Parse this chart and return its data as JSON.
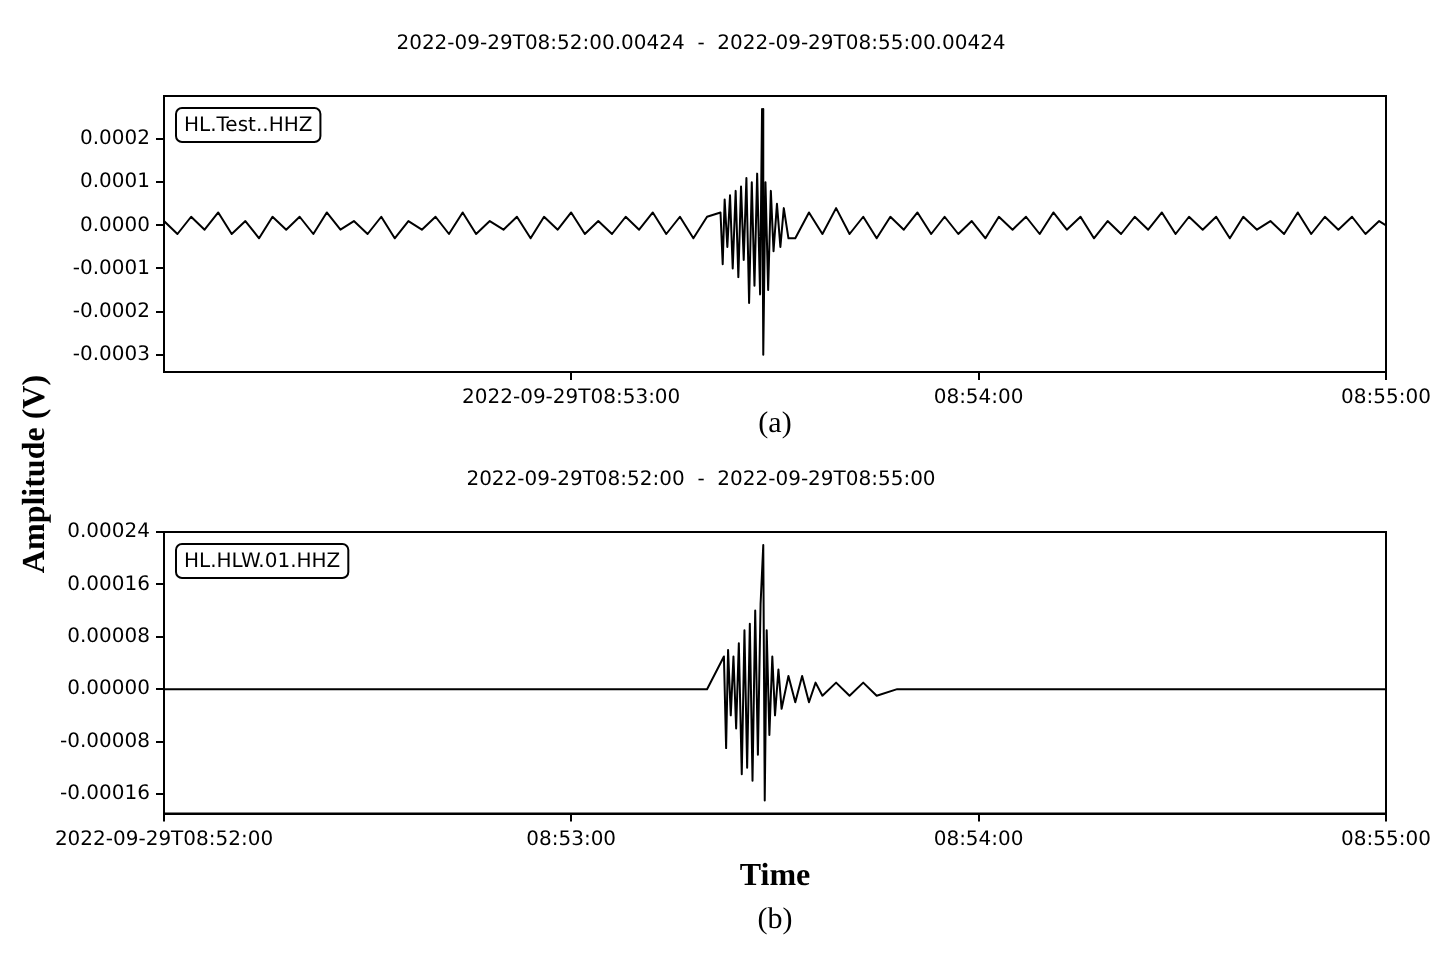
{
  "chart_data": [
    {
      "type": "line",
      "title": "2022-09-29T08:52:00.00424  -  2022-09-29T08:55:00.00424",
      "ylabel": "Amplitude (V)",
      "annotations": [
        "(a)"
      ],
      "legend": "top left",
      "grid": false,
      "marker": "none",
      "line_style": "solid",
      "xlim": [
        8.86667,
        8.91667
      ],
      "xticks": [
        {
          "value": 8.88333,
          "label": "2022-09-29T08:53:00"
        },
        {
          "value": 8.9,
          "label": "08:54:00"
        },
        {
          "value": 8.91667,
          "label": "08:55:00"
        }
      ],
      "ylim": [
        -0.00034,
        0.0003
      ],
      "yticks": [
        -0.0003,
        -0.0002,
        -0.0001,
        {
          "value": 0,
          "label": "0.0000"
        },
        0.0001,
        0.0002
      ],
      "series": [
        {
          "name": "HL.Test..HHZ",
          "color": "#000000",
          "x": [
            8.86667,
            8.86722,
            8.86778,
            8.86833,
            8.86889,
            8.86944,
            8.87,
            8.87056,
            8.87111,
            8.87167,
            8.87222,
            8.87278,
            8.87333,
            8.87389,
            8.87444,
            8.875,
            8.87556,
            8.87611,
            8.87667,
            8.87722,
            8.87778,
            8.87833,
            8.87889,
            8.87944,
            8.88,
            8.88056,
            8.88111,
            8.88167,
            8.88222,
            8.88278,
            8.88333,
            8.88389,
            8.88444,
            8.885,
            8.88556,
            8.88611,
            8.88667,
            8.88722,
            8.88778,
            8.88833,
            8.88889,
            8.88944,
            8.88953,
            8.88961,
            8.88972,
            8.88983,
            8.88994,
            8.89006,
            8.89017,
            8.89028,
            8.89039,
            8.8905,
            8.89061,
            8.89072,
            8.89083,
            8.89094,
            8.89106,
            8.89114,
            8.89119,
            8.89128,
            8.89139,
            8.8915,
            8.89161,
            8.89175,
            8.89189,
            8.89203,
            8.89222,
            8.8925,
            8.89306,
            8.89361,
            8.89417,
            8.89472,
            8.89528,
            8.89583,
            8.89639,
            8.89694,
            8.8975,
            8.89806,
            8.89861,
            8.89917,
            8.89972,
            8.90028,
            8.90083,
            8.90139,
            8.90194,
            8.9025,
            8.90306,
            8.90361,
            8.90417,
            8.90472,
            8.90528,
            8.90583,
            8.90639,
            8.90694,
            8.9075,
            8.90806,
            8.90861,
            8.90917,
            8.90972,
            8.91028,
            8.91083,
            8.91139,
            8.91194,
            8.9125,
            8.91306,
            8.91361,
            8.91417,
            8.91472,
            8.91528,
            8.91583,
            8.91639,
            8.91667
          ],
          "values": [
            1e-05,
            -2e-05,
            2e-05,
            -1e-05,
            3e-05,
            -2e-05,
            1e-05,
            -3e-05,
            2e-05,
            -1e-05,
            2e-05,
            -2e-05,
            3e-05,
            -1e-05,
            1e-05,
            -2e-05,
            2e-05,
            -3e-05,
            1e-05,
            -1e-05,
            2e-05,
            -2e-05,
            3e-05,
            -2e-05,
            1e-05,
            -1e-05,
            2e-05,
            -3e-05,
            2e-05,
            -1e-05,
            3e-05,
            -2e-05,
            1e-05,
            -2e-05,
            2e-05,
            -1e-05,
            3e-05,
            -2e-05,
            2e-05,
            -3e-05,
            2e-05,
            3e-05,
            -9e-05,
            6e-05,
            -5e-05,
            7e-05,
            -0.0001,
            8e-05,
            -0.00012,
            9e-05,
            -8e-05,
            0.00011,
            -0.00018,
            0.0001,
            -0.00014,
            0.00012,
            -0.00016,
            0.00027,
            -0.0003,
            0.0001,
            -0.00015,
            8e-05,
            -6e-05,
            5e-05,
            -5e-05,
            4e-05,
            -3e-05,
            -3e-05,
            3e-05,
            -2e-05,
            4e-05,
            -2e-05,
            2e-05,
            -3e-05,
            2e-05,
            -1e-05,
            3e-05,
            -2e-05,
            2e-05,
            -2e-05,
            1e-05,
            -3e-05,
            2e-05,
            -1e-05,
            2e-05,
            -2e-05,
            3e-05,
            -1e-05,
            2e-05,
            -3e-05,
            1e-05,
            -2e-05,
            2e-05,
            -1e-05,
            3e-05,
            -2e-05,
            2e-05,
            -1e-05,
            2e-05,
            -3e-05,
            2e-05,
            -1e-05,
            1e-05,
            -2e-05,
            3e-05,
            -2e-05,
            2e-05,
            -1e-05,
            2e-05,
            -2e-05,
            1e-05,
            0
          ]
        }
      ]
    },
    {
      "type": "line",
      "title": "2022-09-29T08:52:00  -  2022-09-29T08:55:00",
      "xlabel": "Time",
      "annotations": [
        "(b)"
      ],
      "legend": "top left",
      "grid": false,
      "marker": "none",
      "line_style": "solid",
      "xlim": [
        8.86667,
        8.91667
      ],
      "xticks": [
        {
          "value": 8.86667,
          "label": "2022-09-29T08:52:00"
        },
        {
          "value": 8.88333,
          "label": "08:53:00"
        },
        {
          "value": 8.9,
          "label": "08:54:00"
        },
        {
          "value": 8.91667,
          "label": "08:55:00"
        }
      ],
      "ylim": [
        -0.00019,
        0.00024
      ],
      "yticks": [
        -0.00016,
        {
          "value": -8e-05,
          "label": "-0.00008"
        },
        {
          "value": 0,
          "label": "0.00000"
        },
        {
          "value": 8e-05,
          "label": "0.00008"
        },
        0.00016,
        0.00024
      ],
      "series": [
        {
          "name": "HL.HLW.01.HHZ",
          "color": "#000000",
          "x": [
            8.86667,
            8.86944,
            8.87222,
            8.875,
            8.87778,
            8.88056,
            8.88333,
            8.88611,
            8.88889,
            8.88958,
            8.88967,
            8.88975,
            8.88986,
            8.88997,
            8.89008,
            8.89019,
            8.89031,
            8.89042,
            8.89053,
            8.89064,
            8.89075,
            8.89086,
            8.89097,
            8.89108,
            8.89119,
            8.89125,
            8.89133,
            8.89144,
            8.89156,
            8.89167,
            8.89181,
            8.89194,
            8.89222,
            8.8925,
            8.89278,
            8.89306,
            8.89333,
            8.89361,
            8.89417,
            8.89472,
            8.89528,
            8.89583,
            8.89667,
            8.8975,
            8.89861,
            8.9,
            8.90167,
            8.90333,
            8.90556,
            8.90833,
            8.9125,
            8.91667
          ],
          "values": [
            0,
            0,
            0,
            0,
            0,
            0,
            0,
            0,
            0,
            5e-05,
            -9e-05,
            6e-05,
            -4e-05,
            5e-05,
            -6e-05,
            7e-05,
            -0.00013,
            9e-05,
            -0.00012,
            0.0001,
            -0.00014,
            0.00012,
            -0.0001,
            0.00013,
            0.00022,
            -0.00017,
            9e-05,
            -7e-05,
            5e-05,
            -4e-05,
            3e-05,
            -3e-05,
            2e-05,
            -2e-05,
            2e-05,
            -2e-05,
            1e-05,
            -1e-05,
            1e-05,
            -1e-05,
            1e-05,
            -1e-05,
            0,
            0,
            0,
            0,
            0,
            0,
            0,
            0,
            0,
            0
          ]
        }
      ]
    }
  ]
}
